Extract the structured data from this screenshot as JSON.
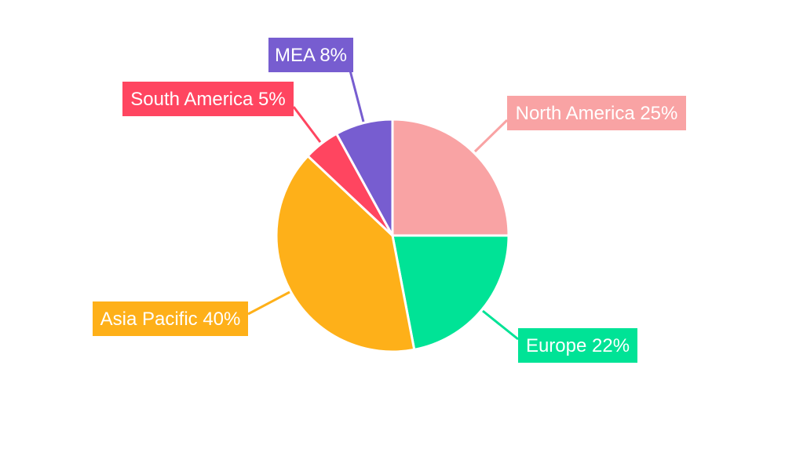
{
  "chart_data": {
    "type": "pie",
    "categories": [
      "North America",
      "Europe",
      "Asia Pacific",
      "South America",
      "MEA"
    ],
    "values": [
      25,
      22,
      40,
      5,
      8
    ],
    "unit": "%",
    "colors": [
      "#F9A3A4",
      "#00E396",
      "#FEB019",
      "#FF4560",
      "#775DD0"
    ],
    "labels": [
      "North America 25%",
      "Europe 22%",
      "Asia Pacific 40%",
      "South America 5%",
      "MEA 8%"
    ],
    "start_angle": "12 o'clock, clockwise",
    "legend": "none"
  }
}
